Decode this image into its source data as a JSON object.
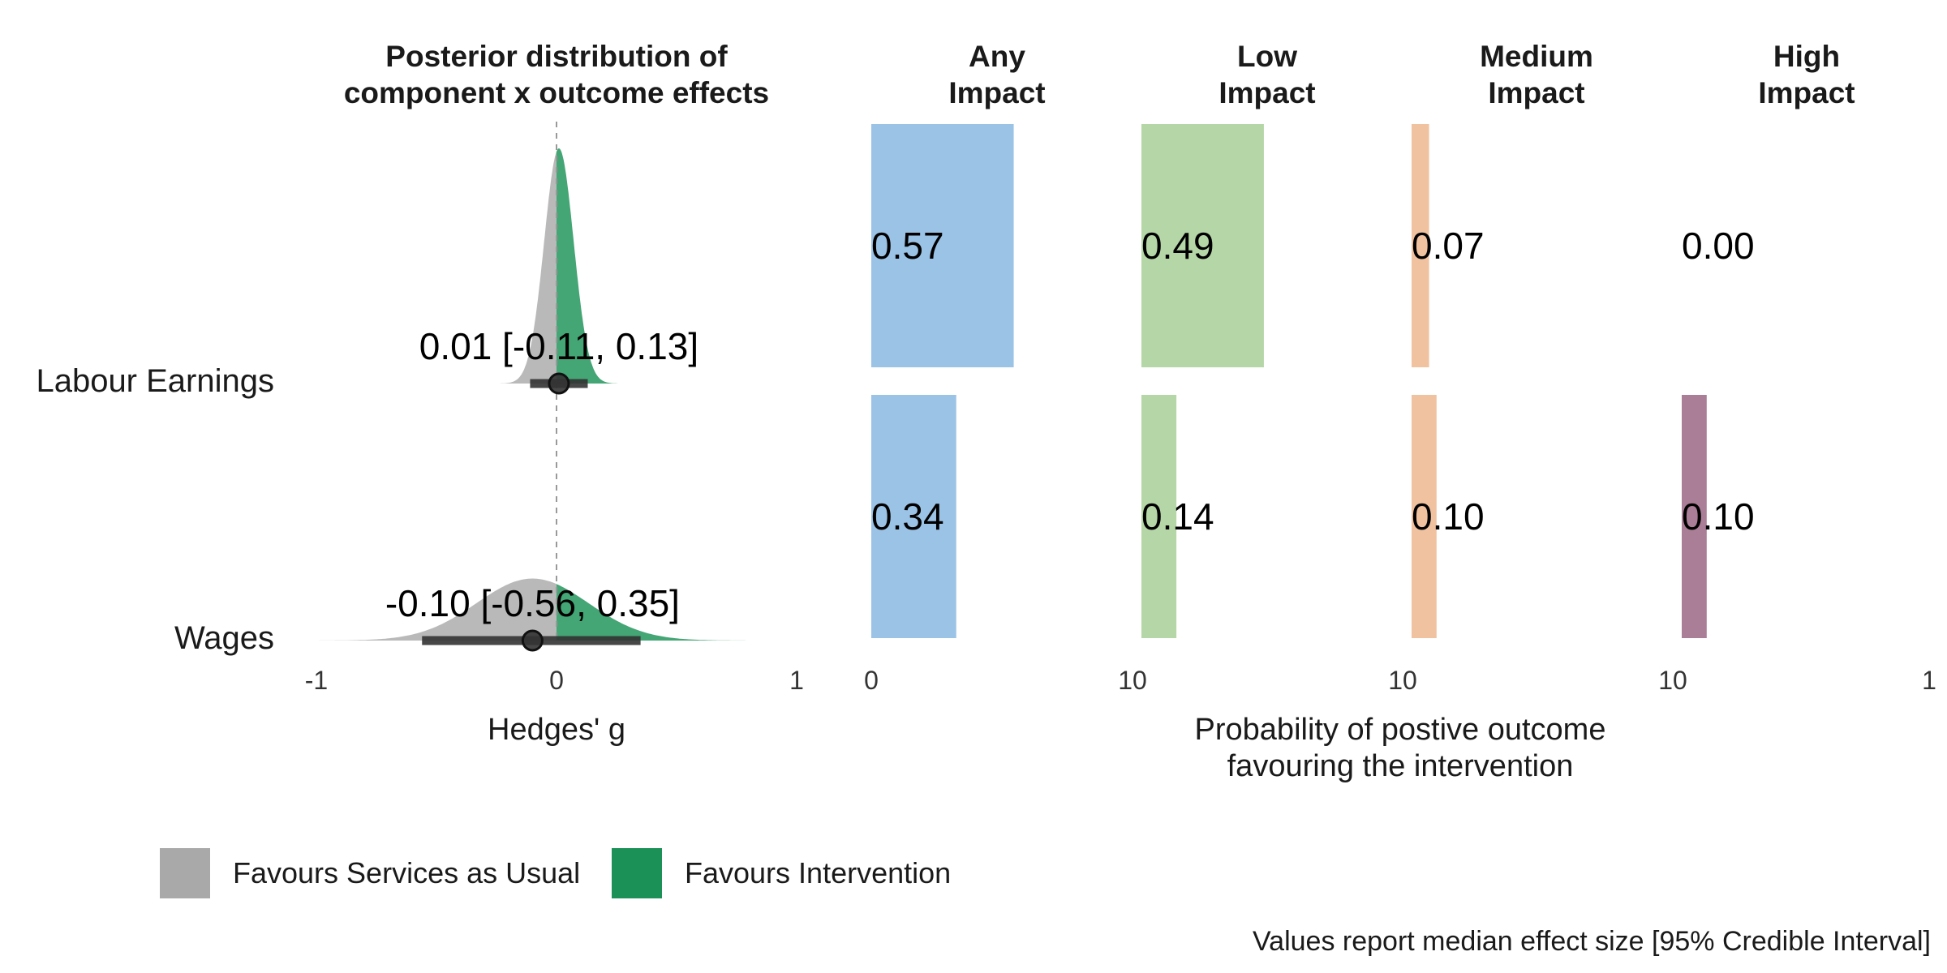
{
  "colors": {
    "services_as_usual": "#a9a9a9",
    "intervention": "#1b9157",
    "any_impact": "#9bc3e6",
    "low_impact": "#b5d6a7",
    "medium_impact": "#f0c29f",
    "high_impact": "#ab7e97",
    "interval": "#333333"
  },
  "chart_data": [
    {
      "type": "area",
      "title": "Posterior distribution of\ncomponent x outcome effects",
      "title_lines": [
        "Posterior distribution of",
        "component x outcome effects"
      ],
      "xlabel": "Hedges' g",
      "xlim": [
        -1,
        1
      ],
      "xticks": [
        "-1",
        "0",
        "1"
      ],
      "reference_line_x": 0,
      "rows": [
        {
          "outcome": "Labour Earnings",
          "median": 0.01,
          "ci_low": -0.11,
          "ci_high": 0.13,
          "label": "0.01 [-0.11, 0.13]"
        },
        {
          "outcome": "Wages",
          "median": -0.1,
          "ci_low": -0.56,
          "ci_high": 0.35,
          "label": "-0.10 [-0.56, 0.35]"
        }
      ],
      "legend": [
        "Favours Services as Usual",
        "Favours Intervention"
      ],
      "legend_placement": "bottom-left"
    },
    {
      "type": "bar",
      "orientation": "horizontal",
      "xlabel": "Probability of postive outcome\nfavouring the intervention",
      "xlabel_lines": [
        "Probability of postive outcome",
        "favouring the intervention"
      ],
      "xlim": [
        0,
        1
      ],
      "panels": [
        {
          "name": "Any Impact",
          "title_lines": [
            "Any",
            "Impact"
          ],
          "values": [
            0.57,
            0.34
          ],
          "labels": [
            "0.57",
            "0.34"
          ],
          "xticks": [
            "0",
            "1"
          ]
        },
        {
          "name": "Low Impact",
          "title_lines": [
            "Low",
            "Impact"
          ],
          "values": [
            0.49,
            0.14
          ],
          "labels": [
            "0.49",
            "0.14"
          ],
          "xticks": [
            "0",
            "1"
          ]
        },
        {
          "name": "Medium Impact",
          "title_lines": [
            "Medium",
            "Impact"
          ],
          "values": [
            0.07,
            0.1
          ],
          "labels": [
            "0.07",
            "0.10"
          ],
          "xticks": [
            "0",
            "1"
          ]
        },
        {
          "name": "High Impact",
          "title_lines": [
            "High",
            "Impact"
          ],
          "values": [
            0.0,
            0.1
          ],
          "labels": [
            "0.00",
            "0.10"
          ],
          "xticks": [
            "0",
            "1"
          ]
        }
      ],
      "categories": [
        "Labour Earnings",
        "Wages"
      ]
    }
  ],
  "caption": "Values report median effect size [95% Credible Interval]"
}
